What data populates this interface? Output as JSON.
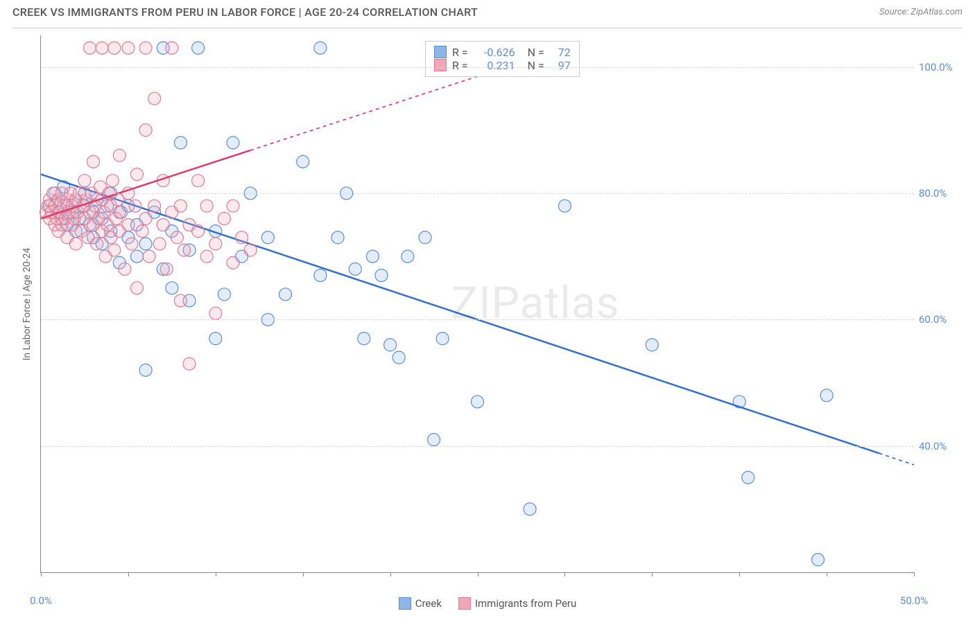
{
  "header": {
    "title": "CREEK VS IMMIGRANTS FROM PERU IN LABOR FORCE | AGE 20-24 CORRELATION CHART",
    "source": "Source: ZipAtlas.com"
  },
  "watermark": "ZIPatlas",
  "chart": {
    "type": "scatter",
    "y_axis_label": "In Labor Force | Age 20-24",
    "xlim": [
      0,
      50
    ],
    "ylim": [
      20,
      105
    ],
    "x_ticks": [
      0,
      5,
      10,
      15,
      20,
      25,
      30,
      35,
      40,
      45,
      50
    ],
    "x_tick_labels": {
      "0": "0.0%",
      "50": "50.0%"
    },
    "y_gridlines": [
      40,
      60,
      80,
      100
    ],
    "y_tick_labels": {
      "40": "40.0%",
      "60": "60.0%",
      "80": "80.0%",
      "100": "100.0%"
    },
    "background_color": "#ffffff",
    "grid_color": "#d8d8d8",
    "axis_color": "#888888",
    "tick_label_color": "#5b8dd6",
    "marker_radius": 9,
    "marker_stroke_width": 1.2,
    "marker_fill_opacity": 0.25,
    "series": [
      {
        "name": "Creek",
        "color_fill": "#8fb4e8",
        "color_stroke": "#5b8dd6",
        "R": "-0.626",
        "N": "72",
        "trend": {
          "x1": 0,
          "y1": 83,
          "x2": 50,
          "y2": 37,
          "solid_until_x": 48,
          "color": "#2f6fd0",
          "width": 2.5
        },
        "points": [
          [
            0.5,
            78
          ],
          [
            0.8,
            80
          ],
          [
            1.0,
            77
          ],
          [
            1.0,
            79
          ],
          [
            1.2,
            76
          ],
          [
            1.3,
            81
          ],
          [
            1.5,
            78
          ],
          [
            1.5,
            75
          ],
          [
            1.8,
            77
          ],
          [
            2.0,
            79
          ],
          [
            2.0,
            74
          ],
          [
            2.2,
            76
          ],
          [
            2.5,
            78
          ],
          [
            2.5,
            80
          ],
          [
            2.8,
            75
          ],
          [
            3.0,
            77
          ],
          [
            3.0,
            73
          ],
          [
            3.2,
            79
          ],
          [
            3.5,
            76
          ],
          [
            3.5,
            72
          ],
          [
            3.8,
            78
          ],
          [
            4.0,
            74
          ],
          [
            4.0,
            80
          ],
          [
            4.5,
            69
          ],
          [
            4.5,
            77
          ],
          [
            5.0,
            73
          ],
          [
            5.0,
            78
          ],
          [
            5.5,
            70
          ],
          [
            5.5,
            75
          ],
          [
            6.0,
            72
          ],
          [
            6.0,
            52
          ],
          [
            6.5,
            77
          ],
          [
            7.0,
            68
          ],
          [
            7.0,
            103
          ],
          [
            7.5,
            65
          ],
          [
            7.5,
            74
          ],
          [
            8.0,
            88
          ],
          [
            8.5,
            63
          ],
          [
            8.5,
            71
          ],
          [
            9.0,
            103
          ],
          [
            10.0,
            74
          ],
          [
            10.0,
            57
          ],
          [
            10.5,
            64
          ],
          [
            11.0,
            88
          ],
          [
            11.5,
            70
          ],
          [
            12.0,
            80
          ],
          [
            13.0,
            73
          ],
          [
            13.0,
            60
          ],
          [
            14.0,
            64
          ],
          [
            15.0,
            85
          ],
          [
            16.0,
            67
          ],
          [
            16.0,
            103
          ],
          [
            17.0,
            73
          ],
          [
            17.5,
            80
          ],
          [
            18.0,
            68
          ],
          [
            18.5,
            57
          ],
          [
            19.0,
            70
          ],
          [
            19.5,
            67
          ],
          [
            20.0,
            56
          ],
          [
            20.5,
            54
          ],
          [
            21.0,
            70
          ],
          [
            22.0,
            73
          ],
          [
            22.5,
            41
          ],
          [
            23.0,
            57
          ],
          [
            25.0,
            47
          ],
          [
            28.0,
            30
          ],
          [
            30.0,
            78
          ],
          [
            35.0,
            56
          ],
          [
            40.0,
            47
          ],
          [
            40.5,
            35
          ],
          [
            44.5,
            22
          ],
          [
            45.0,
            48
          ]
        ]
      },
      {
        "name": "Immigrants from Peru",
        "color_fill": "#f2a6b8",
        "color_stroke": "#e27a93",
        "R": "0.231",
        "N": "97",
        "trend": {
          "x1": 0,
          "y1": 76,
          "x2": 30,
          "y2": 103,
          "solid_until_x": 12,
          "color": "#e03c6a",
          "width": 2.5
        },
        "points": [
          [
            0.3,
            77
          ],
          [
            0.4,
            78
          ],
          [
            0.5,
            76
          ],
          [
            0.5,
            79
          ],
          [
            0.6,
            77
          ],
          [
            0.7,
            80
          ],
          [
            0.8,
            75
          ],
          [
            0.8,
            78
          ],
          [
            0.9,
            76
          ],
          [
            1.0,
            79
          ],
          [
            1.0,
            74
          ],
          [
            1.1,
            77
          ],
          [
            1.2,
            80
          ],
          [
            1.2,
            75
          ],
          [
            1.3,
            78
          ],
          [
            1.4,
            76
          ],
          [
            1.5,
            79
          ],
          [
            1.5,
            73
          ],
          [
            1.6,
            77
          ],
          [
            1.7,
            80
          ],
          [
            1.8,
            75
          ],
          [
            1.8,
            78
          ],
          [
            1.9,
            76
          ],
          [
            2.0,
            79
          ],
          [
            2.0,
            72
          ],
          [
            2.1,
            77
          ],
          [
            2.2,
            80
          ],
          [
            2.3,
            74
          ],
          [
            2.4,
            78
          ],
          [
            2.5,
            76
          ],
          [
            2.5,
            82
          ],
          [
            2.6,
            79
          ],
          [
            2.7,
            73
          ],
          [
            2.8,
            77
          ],
          [
            2.9,
            80
          ],
          [
            3.0,
            75
          ],
          [
            3.0,
            85
          ],
          [
            3.1,
            78
          ],
          [
            3.2,
            72
          ],
          [
            3.3,
            76
          ],
          [
            3.4,
            81
          ],
          [
            3.5,
            74
          ],
          [
            3.5,
            79
          ],
          [
            3.6,
            77
          ],
          [
            3.7,
            70
          ],
          [
            3.8,
            75
          ],
          [
            3.9,
            80
          ],
          [
            4.0,
            73
          ],
          [
            4.0,
            78
          ],
          [
            4.1,
            82
          ],
          [
            4.2,
            71
          ],
          [
            4.3,
            76
          ],
          [
            4.4,
            79
          ],
          [
            4.5,
            74
          ],
          [
            4.5,
            86
          ],
          [
            4.6,
            77
          ],
          [
            4.8,
            68
          ],
          [
            5.0,
            75
          ],
          [
            5.0,
            80
          ],
          [
            5.2,
            72
          ],
          [
            5.4,
            78
          ],
          [
            5.5,
            65
          ],
          [
            5.5,
            83
          ],
          [
            5.8,
            74
          ],
          [
            6.0,
            76
          ],
          [
            6.0,
            90
          ],
          [
            6.2,
            70
          ],
          [
            6.5,
            78
          ],
          [
            6.5,
            95
          ],
          [
            6.8,
            72
          ],
          [
            7.0,
            75
          ],
          [
            7.0,
            82
          ],
          [
            7.2,
            68
          ],
          [
            7.5,
            77
          ],
          [
            7.5,
            103
          ],
          [
            7.8,
            73
          ],
          [
            8.0,
            63
          ],
          [
            8.0,
            78
          ],
          [
            8.2,
            71
          ],
          [
            8.5,
            75
          ],
          [
            8.5,
            53
          ],
          [
            9.0,
            74
          ],
          [
            9.0,
            82
          ],
          [
            9.5,
            70
          ],
          [
            9.5,
            78
          ],
          [
            10.0,
            72
          ],
          [
            10.0,
            61
          ],
          [
            10.5,
            76
          ],
          [
            11.0,
            69
          ],
          [
            11.0,
            78
          ],
          [
            11.5,
            73
          ],
          [
            12.0,
            71
          ],
          [
            2.8,
            103
          ],
          [
            3.5,
            103
          ],
          [
            4.2,
            103
          ],
          [
            5.0,
            103
          ],
          [
            6.0,
            103
          ]
        ]
      }
    ],
    "stats_box": {
      "left_pct": 44,
      "top_pct": 1
    },
    "legend_labels": {
      "s0": "Creek",
      "s1": "Immigrants from Peru"
    },
    "stat_text": {
      "r_eq": "R =",
      "n_eq": "N ="
    }
  }
}
